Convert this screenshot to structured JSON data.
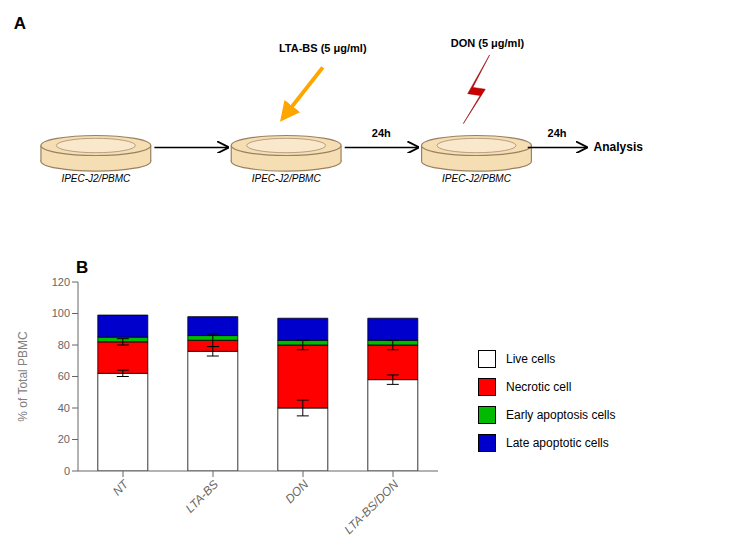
{
  "chart_data": {
    "type": "bar",
    "title": "B",
    "stacked": true,
    "categories": [
      "NT",
      "LTA-BS",
      "DON",
      "LTA-BS/DON"
    ],
    "ylabel": "% of Total PBMC",
    "ylim": [
      0,
      120
    ],
    "yticks": [
      0,
      20,
      40,
      60,
      80,
      100,
      120
    ],
    "legend": "right",
    "series": [
      {
        "name": "Live cells",
        "color": "#FFFFFF",
        "values": [
          62,
          76,
          40,
          58
        ],
        "errors": [
          2,
          3,
          5,
          3
        ]
      },
      {
        "name": "Necrotic cell",
        "color": "#FF0000",
        "values": [
          20,
          7,
          40,
          22
        ],
        "errors": [
          2,
          4,
          3,
          3
        ]
      },
      {
        "name": "Early apoptosis cells",
        "color": "#00BB00",
        "values": [
          3,
          3,
          3,
          3
        ]
      },
      {
        "name": "Late apoptotic cells",
        "color": "#0000CC",
        "values": [
          14,
          12,
          14,
          14
        ]
      }
    ],
    "annotations": [
      "A",
      "IPEC-J2/PBMC",
      "IPEC-J2/PBMC",
      "IPEC-J2/PBMC",
      "24h",
      "24h",
      "Analysis",
      "LTA-BS (5 μg/ml)",
      "DON (5 μg/ml)"
    ]
  }
}
